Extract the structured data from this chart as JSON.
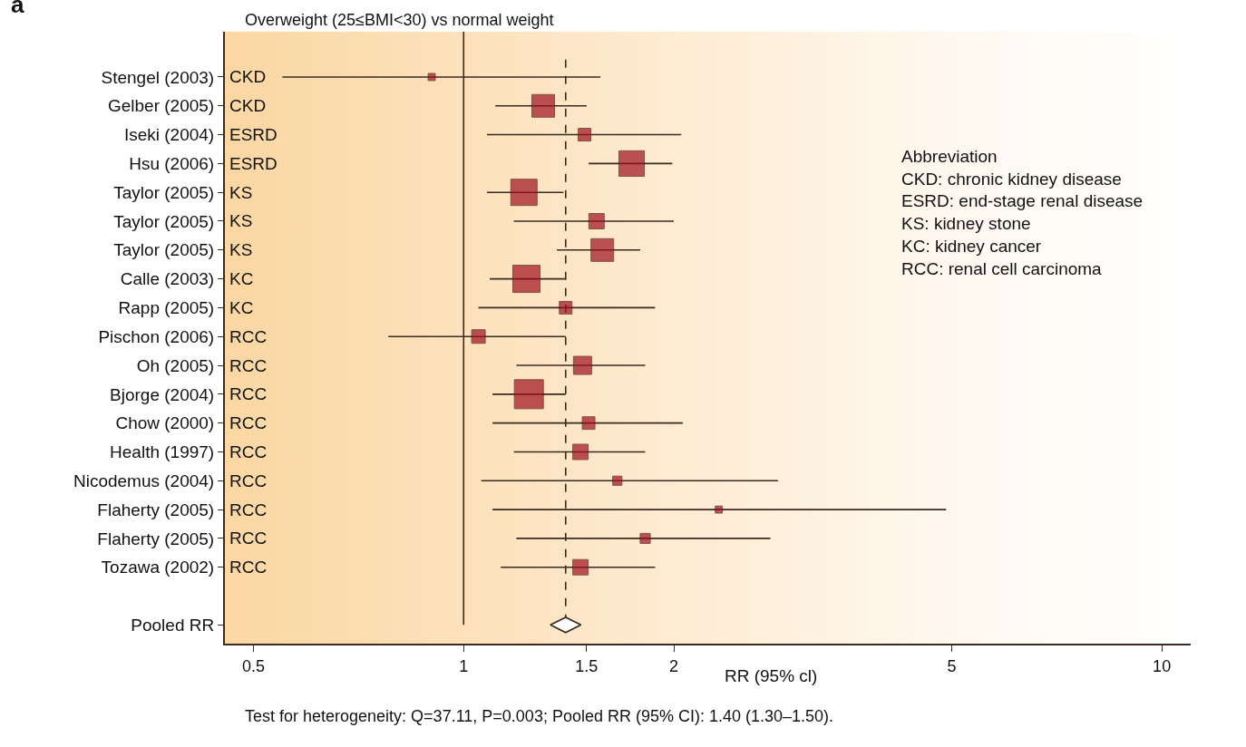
{
  "chart_data": {
    "type": "bubble",
    "orientation": "horizontal",
    "title": "Overweight (25≤BMI<30) vs normal weight",
    "xlabel": "RR (95% cl)",
    "categories": [
      "Stengel (2003)",
      "Gelber (2005)",
      "Iseki (2004)",
      "Hsu (2006)",
      "Taylor (2005)",
      "Taylor (2005)",
      "Taylor (2005)",
      "Calle (2003)",
      "Rapp (2005)",
      "Pischon (2006)",
      "Oh (2005)",
      "Bjorge (2004)",
      "Chow (2000)",
      "Health (1997)",
      "Nicodemus (2004)",
      "Flaherty (2005)",
      "Flaherty (2005)",
      "Tozawa (2002)",
      null,
      "Pooled RR"
    ],
    "y2_categories": [
      "CKD",
      "CKD",
      "ESRD",
      "ESRD",
      "KS",
      "KS",
      "KS",
      "KC",
      "KC",
      "RCC",
      "RCC",
      "RCC",
      "RCC",
      "RCC",
      "RCC",
      "RCC",
      "RCC",
      "RCC",
      null,
      null
    ],
    "series": [
      {
        "color": "#a0101e",
        "marker": "square",
        "values": [
          0.9,
          1.3,
          1.49,
          1.74,
          1.22,
          1.55,
          1.58,
          1.23,
          1.4,
          1.05,
          1.48,
          1.24,
          1.51,
          1.47,
          1.66,
          2.32,
          1.82,
          1.47,
          null,
          null
        ],
        "errors": [
          [
            0.55,
            1.57
          ],
          [
            1.11,
            1.5
          ],
          [
            1.08,
            2.05
          ],
          [
            1.51,
            1.99
          ],
          [
            1.08,
            1.39
          ],
          [
            1.18,
            2.0
          ],
          [
            1.36,
            1.79
          ],
          [
            1.09,
            1.4
          ],
          [
            1.05,
            1.88
          ],
          [
            0.78,
            1.4
          ],
          [
            1.19,
            1.82
          ],
          [
            1.1,
            1.4
          ],
          [
            1.1,
            2.06
          ],
          [
            1.18,
            1.82
          ],
          [
            1.06,
            2.82
          ],
          [
            1.1,
            4.91
          ],
          [
            1.19,
            2.75
          ],
          [
            1.13,
            1.88
          ],
          null,
          null
        ],
        "sizes": [
          0.06,
          0.61,
          0.19,
          0.77,
          0.82,
          0.28,
          0.61,
          0.88,
          0.19,
          0.22,
          0.39,
          1,
          0.19,
          0.28,
          0.1,
          0.06,
          0.12,
          0.28,
          null,
          null
        ]
      },
      {
        "type": "scatter",
        "color": "#ffffff",
        "marker": "diamond",
        "values": [
          null,
          null,
          null,
          null,
          null,
          null,
          null,
          null,
          null,
          null,
          null,
          null,
          null,
          null,
          null,
          null,
          null,
          null,
          null,
          1.4
        ]
      }
    ],
    "log": "x",
    "xlim": [
      0.455,
      11
    ],
    "xticks": [
      0.5,
      1,
      1.5,
      2,
      5,
      10
    ],
    "ref_lines": [
      {
        "axis": "x",
        "value": 1,
        "line_style": "solid"
      },
      {
        "axis": "x",
        "value": 1.4,
        "line_style": "dashed"
      }
    ],
    "annotations": [
      "a",
      "Abbreviation",
      "CKD: chronic kidney disease",
      "ESRD: end-stage renal disease",
      "KS: kidney stone",
      "KC: kidney cancer",
      "RCC: renal cell carcinoma",
      "Test for heterogeneity: Q=37.11, P=0.003; Pooled RR (95% CI): 1.40 (1.30–1.50)."
    ]
  }
}
